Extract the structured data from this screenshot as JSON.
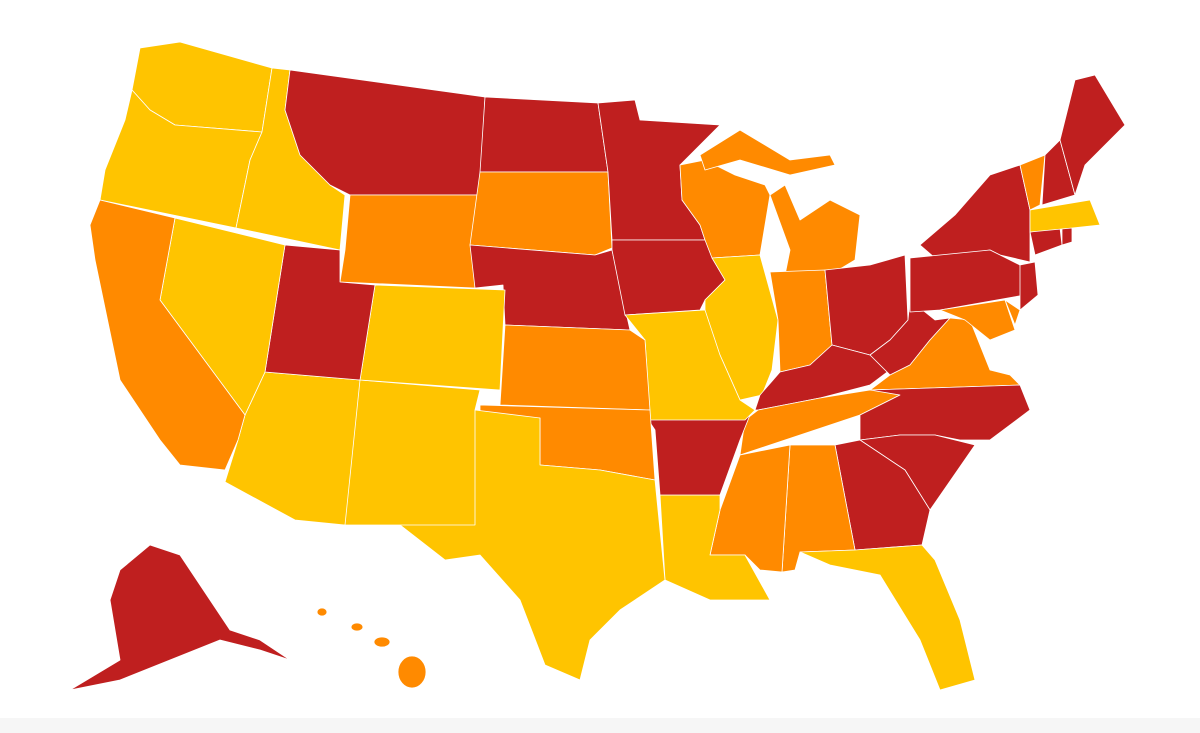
{
  "map": {
    "colors": [
      "#bf1f1f",
      "#ff8a00",
      "#ffc400"
    ]
  }
}
